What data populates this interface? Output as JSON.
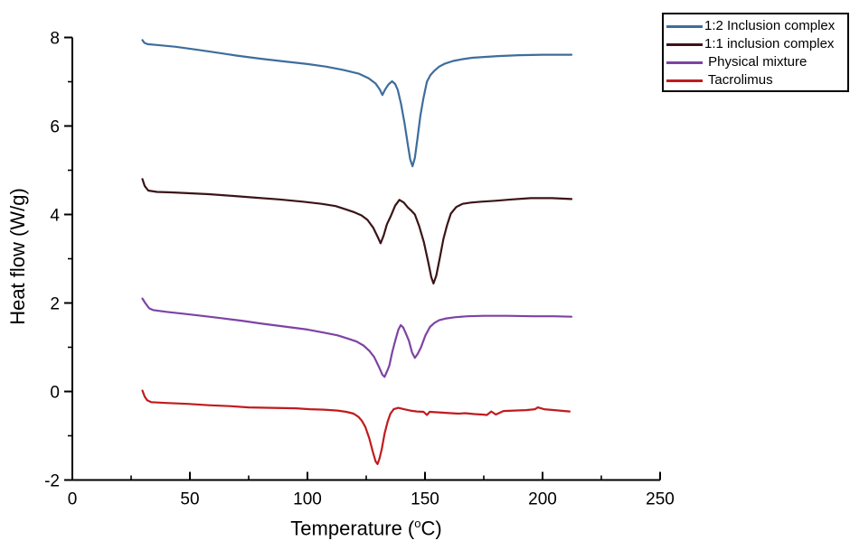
{
  "figure": {
    "xlabel_prefix": "Temperature (",
    "xlabel_sup": "o",
    "xlabel_suffix": "C)",
    "ylabel": "Heat flow (W/g)"
  },
  "chart_data": {
    "type": "line",
    "title": "",
    "xlabel": "Temperature (°C)",
    "ylabel": "Heat flow (W/g)",
    "xlim": [
      0,
      250
    ],
    "ylim": [
      -2,
      8
    ],
    "x_major_ticks": [
      0,
      50,
      100,
      150,
      200,
      250
    ],
    "x_minor_ticks": [
      25,
      75,
      125,
      175,
      225
    ],
    "y_major_ticks": [
      -2,
      0,
      2,
      4,
      6,
      8
    ],
    "y_minor_ticks": [
      -1,
      1,
      3,
      5,
      7
    ],
    "grid": false,
    "legend_position": "top-right-outside",
    "axis_color": "#000000",
    "series": [
      {
        "name": "1:2 Inclusion complex",
        "color": "#3e6d9c",
        "points": [
          [
            29.8,
            7.94
          ],
          [
            30.6,
            7.88
          ],
          [
            32,
            7.85
          ],
          [
            36,
            7.83
          ],
          [
            44,
            7.79
          ],
          [
            52,
            7.73
          ],
          [
            60,
            7.67
          ],
          [
            70,
            7.59
          ],
          [
            80,
            7.52
          ],
          [
            90,
            7.46
          ],
          [
            100,
            7.4
          ],
          [
            108,
            7.34
          ],
          [
            115,
            7.27
          ],
          [
            122,
            7.18
          ],
          [
            126,
            7.08
          ],
          [
            129,
            6.96
          ],
          [
            130.8,
            6.82
          ],
          [
            131.9,
            6.7
          ],
          [
            133,
            6.82
          ],
          [
            134.5,
            6.94
          ],
          [
            136,
            7.01
          ],
          [
            137.3,
            6.95
          ],
          [
            138.4,
            6.82
          ],
          [
            139.8,
            6.5
          ],
          [
            141.3,
            6.06
          ],
          [
            142.7,
            5.58
          ],
          [
            143.7,
            5.25
          ],
          [
            144.7,
            5.09
          ],
          [
            145.7,
            5.28
          ],
          [
            146.8,
            5.72
          ],
          [
            148,
            6.22
          ],
          [
            149.3,
            6.62
          ],
          [
            150.8,
            7.0
          ],
          [
            152.3,
            7.15
          ],
          [
            154,
            7.25
          ],
          [
            156,
            7.34
          ],
          [
            158.5,
            7.41
          ],
          [
            162,
            7.47
          ],
          [
            166,
            7.51
          ],
          [
            170,
            7.54
          ],
          [
            175,
            7.56
          ],
          [
            181,
            7.58
          ],
          [
            190,
            7.6
          ],
          [
            200,
            7.61
          ],
          [
            212.3,
            7.61
          ]
        ]
      },
      {
        "name": "1:1 inclusion complex",
        "color": "#3b1417",
        "points": [
          [
            29.8,
            4.8
          ],
          [
            30.8,
            4.64
          ],
          [
            32.3,
            4.54
          ],
          [
            36,
            4.51
          ],
          [
            42,
            4.5
          ],
          [
            50,
            4.48
          ],
          [
            58,
            4.46
          ],
          [
            68,
            4.42
          ],
          [
            78,
            4.38
          ],
          [
            88,
            4.34
          ],
          [
            98,
            4.29
          ],
          [
            106,
            4.24
          ],
          [
            112,
            4.19
          ],
          [
            116,
            4.12
          ],
          [
            120,
            4.05
          ],
          [
            123,
            3.98
          ],
          [
            125.5,
            3.88
          ],
          [
            128,
            3.7
          ],
          [
            130,
            3.48
          ],
          [
            131.1,
            3.35
          ],
          [
            132.4,
            3.52
          ],
          [
            133.8,
            3.78
          ],
          [
            135.5,
            3.97
          ],
          [
            137.3,
            4.2
          ],
          [
            139.1,
            4.33
          ],
          [
            141,
            4.27
          ],
          [
            142.7,
            4.16
          ],
          [
            144.3,
            4.08
          ],
          [
            145.7,
            4.0
          ],
          [
            147.5,
            3.74
          ],
          [
            149.5,
            3.38
          ],
          [
            151.4,
            2.92
          ],
          [
            152.7,
            2.58
          ],
          [
            153.6,
            2.44
          ],
          [
            154.8,
            2.62
          ],
          [
            156.3,
            3.02
          ],
          [
            157.8,
            3.44
          ],
          [
            159.4,
            3.76
          ],
          [
            161,
            4.02
          ],
          [
            163.3,
            4.17
          ],
          [
            166,
            4.24
          ],
          [
            169.5,
            4.27
          ],
          [
            174,
            4.29
          ],
          [
            180,
            4.31
          ],
          [
            187,
            4.34
          ],
          [
            195,
            4.37
          ],
          [
            204,
            4.37
          ],
          [
            212.3,
            4.35
          ]
        ]
      },
      {
        "name": " Physical mixture",
        "color": "#7d43a5",
        "points": [
          [
            29.8,
            2.1
          ],
          [
            31,
            2.0
          ],
          [
            32.7,
            1.88
          ],
          [
            34.3,
            1.84
          ],
          [
            40,
            1.8
          ],
          [
            47,
            1.76
          ],
          [
            55,
            1.71
          ],
          [
            63,
            1.66
          ],
          [
            72,
            1.6
          ],
          [
            81,
            1.53
          ],
          [
            90,
            1.47
          ],
          [
            100,
            1.4
          ],
          [
            107,
            1.33
          ],
          [
            112.8,
            1.27
          ],
          [
            117.5,
            1.19
          ],
          [
            120.8,
            1.13
          ],
          [
            123.8,
            1.04
          ],
          [
            126.3,
            0.92
          ],
          [
            128.4,
            0.78
          ],
          [
            130.4,
            0.56
          ],
          [
            131.9,
            0.38
          ],
          [
            132.8,
            0.33
          ],
          [
            133.9,
            0.46
          ],
          [
            134.8,
            0.58
          ],
          [
            136.1,
            0.9
          ],
          [
            137.5,
            1.18
          ],
          [
            138.7,
            1.4
          ],
          [
            139.7,
            1.5
          ],
          [
            140.7,
            1.45
          ],
          [
            141.8,
            1.32
          ],
          [
            143.2,
            1.14
          ],
          [
            144.5,
            0.88
          ],
          [
            145.7,
            0.76
          ],
          [
            146.9,
            0.85
          ],
          [
            148.3,
            1.0
          ],
          [
            150.2,
            1.27
          ],
          [
            152.1,
            1.46
          ],
          [
            154,
            1.55
          ],
          [
            156,
            1.61
          ],
          [
            159,
            1.65
          ],
          [
            163,
            1.68
          ],
          [
            168,
            1.7
          ],
          [
            175,
            1.71
          ],
          [
            185,
            1.71
          ],
          [
            196,
            1.7
          ],
          [
            205,
            1.7
          ],
          [
            212.3,
            1.69
          ]
        ]
      },
      {
        "name": " Tacrolimus",
        "color": "#c01b1e",
        "points": [
          [
            29.8,
            0.02
          ],
          [
            30.8,
            -0.12
          ],
          [
            31.9,
            -0.2
          ],
          [
            33.5,
            -0.24
          ],
          [
            40,
            -0.26
          ],
          [
            49,
            -0.28
          ],
          [
            58,
            -0.31
          ],
          [
            67,
            -0.33
          ],
          [
            75,
            -0.36
          ],
          [
            85,
            -0.37
          ],
          [
            95,
            -0.38
          ],
          [
            101,
            -0.4
          ],
          [
            107,
            -0.41
          ],
          [
            112.8,
            -0.43
          ],
          [
            116.5,
            -0.46
          ],
          [
            119.6,
            -0.5
          ],
          [
            121.6,
            -0.57
          ],
          [
            123.1,
            -0.66
          ],
          [
            124.6,
            -0.8
          ],
          [
            126.3,
            -1.06
          ],
          [
            127.7,
            -1.34
          ],
          [
            129,
            -1.58
          ],
          [
            129.8,
            -1.64
          ],
          [
            130.6,
            -1.52
          ],
          [
            131.6,
            -1.3
          ],
          [
            132.8,
            -0.95
          ],
          [
            134.1,
            -0.68
          ],
          [
            135.3,
            -0.5
          ],
          [
            136.7,
            -0.4
          ],
          [
            138.6,
            -0.37
          ],
          [
            141,
            -0.4
          ],
          [
            143.7,
            -0.43
          ],
          [
            146.5,
            -0.45
          ],
          [
            149.4,
            -0.46
          ],
          [
            150.8,
            -0.53
          ],
          [
            152,
            -0.46
          ],
          [
            155,
            -0.47
          ],
          [
            158,
            -0.48
          ],
          [
            161,
            -0.49
          ],
          [
            164.2,
            -0.5
          ],
          [
            167,
            -0.49
          ],
          [
            171,
            -0.51
          ],
          [
            174.4,
            -0.52
          ],
          [
            176.3,
            -0.53
          ],
          [
            178.2,
            -0.45
          ],
          [
            180.1,
            -0.52
          ],
          [
            183.4,
            -0.44
          ],
          [
            188,
            -0.43
          ],
          [
            193,
            -0.42
          ],
          [
            196.8,
            -0.4
          ],
          [
            198,
            -0.36
          ],
          [
            200.6,
            -0.4
          ],
          [
            205,
            -0.42
          ],
          [
            211.5,
            -0.45
          ]
        ]
      }
    ]
  }
}
